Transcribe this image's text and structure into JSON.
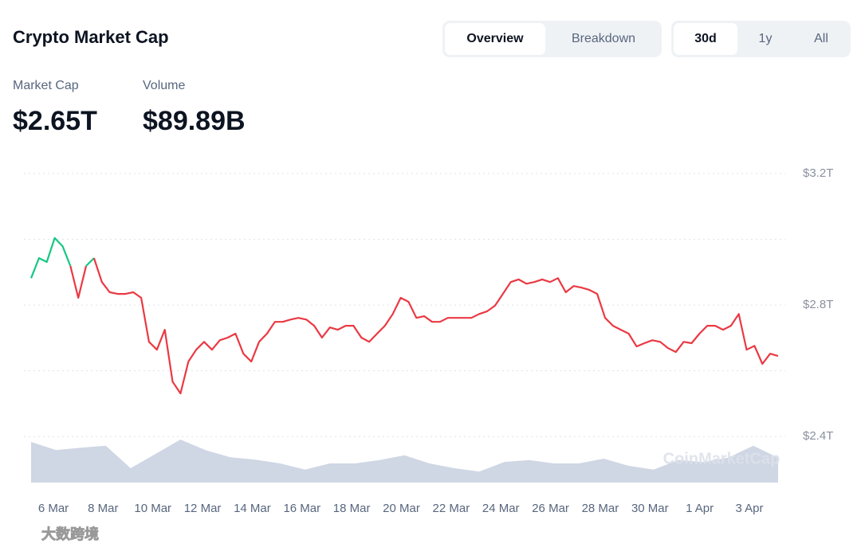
{
  "header": {
    "title": "Crypto Market Cap",
    "tabs": [
      "Overview",
      "Breakdown"
    ],
    "active_tab": 0,
    "ranges": [
      "30d",
      "1y",
      "All"
    ],
    "active_range": 0
  },
  "stats": [
    {
      "label": "Market Cap",
      "value": "$2.65T"
    },
    {
      "label": "Volume",
      "value": "$89.89B"
    }
  ],
  "watermark": "CoinMarketCap",
  "corner_mark": "大数跨境",
  "chart_data": {
    "type": "line",
    "x_labels": [
      "6 Mar",
      "8 Mar",
      "10 Mar",
      "12 Mar",
      "14 Mar",
      "16 Mar",
      "18 Mar",
      "20 Mar",
      "22 Mar",
      "24 Mar",
      "26 Mar",
      "28 Mar",
      "30 Mar",
      "1 Apr",
      "3 Apr"
    ],
    "ylim": [
      2.26,
      3.2
    ],
    "yticks": [
      {
        "value": 2.4,
        "label": "$2.4T"
      },
      {
        "value": 2.6,
        "label": null
      },
      {
        "value": 2.8,
        "label": "$2.8T"
      },
      {
        "value": 3.0,
        "label": null
      },
      {
        "value": 3.2,
        "label": "$3.2T"
      }
    ],
    "grid": true,
    "color_up": "#16c784",
    "color_down": "#ea3943",
    "series": [
      {
        "name": "Market Cap",
        "values": [
          2.882,
          2.943,
          2.931,
          3.004,
          2.979,
          2.919,
          2.822,
          2.919,
          2.943,
          2.87,
          2.839,
          2.834,
          2.834,
          2.839,
          2.822,
          2.688,
          2.664,
          2.725,
          2.567,
          2.531,
          2.628,
          2.664,
          2.688,
          2.664,
          2.693,
          2.701,
          2.713,
          2.652,
          2.628,
          2.688,
          2.713,
          2.749,
          2.749,
          2.756,
          2.761,
          2.756,
          2.737,
          2.701,
          2.732,
          2.725,
          2.737,
          2.737,
          2.701,
          2.688,
          2.713,
          2.737,
          2.773,
          2.822,
          2.81,
          2.761,
          2.766,
          2.749,
          2.749,
          2.761,
          2.761,
          2.761,
          2.761,
          2.773,
          2.781,
          2.798,
          2.834,
          2.87,
          2.878,
          2.865,
          2.87,
          2.878,
          2.87,
          2.882,
          2.839,
          2.858,
          2.853,
          2.846,
          2.834,
          2.761,
          2.737,
          2.725,
          2.713,
          2.674,
          2.684,
          2.693,
          2.688,
          2.669,
          2.657,
          2.688,
          2.684,
          2.713,
          2.737,
          2.737,
          2.725,
          2.737,
          2.773,
          2.664,
          2.676,
          2.621,
          2.652,
          2.645
        ]
      },
      {
        "name": "Volume",
        "axis": "y2",
        "color": "#cfd6e4",
        "values": [
          85,
          68,
          73,
          77,
          30,
          60,
          90,
          68,
          53,
          48,
          40,
          27,
          40,
          40,
          47,
          57,
          40,
          30,
          23,
          43,
          47,
          40,
          40,
          50,
          35,
          27,
          47,
          43,
          52,
          77,
          52
        ]
      }
    ],
    "y2lim": [
      0,
      100
    ]
  }
}
